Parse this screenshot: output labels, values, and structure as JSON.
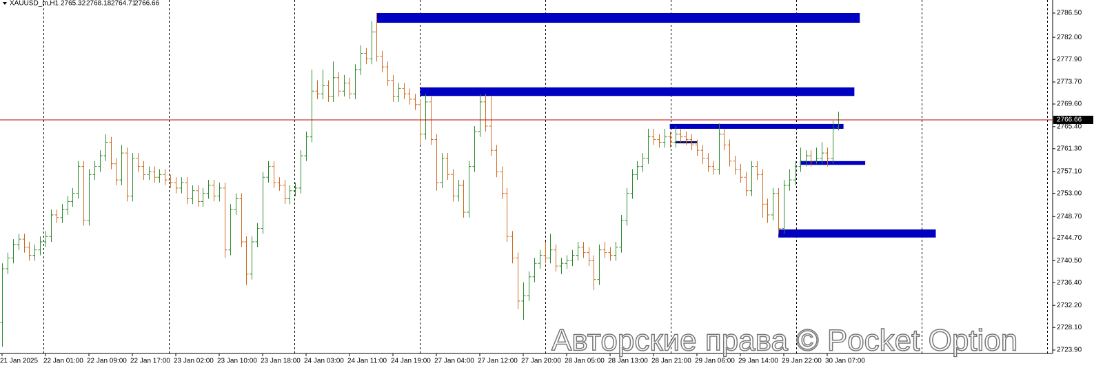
{
  "chart_data": {
    "type": "ohlc",
    "symbol": "XAUUSD_m,H1",
    "watermark": "Авторские права © Pocket Option",
    "up_color": "#2e8b2e",
    "down_color": "#cd6a1e",
    "price_line_color": "#c00000",
    "categories": [
      "21 Jan 2025",
      null,
      null,
      null,
      null,
      null,
      null,
      null,
      "22 Jan 01:00",
      null,
      null,
      null,
      null,
      null,
      null,
      null,
      "22 Jan 09:00",
      null,
      null,
      null,
      null,
      null,
      null,
      null,
      "22 Jan 17:00",
      null,
      null,
      null,
      null,
      null,
      null,
      null,
      "23 Jan 02:00",
      null,
      null,
      null,
      null,
      null,
      null,
      null,
      "23 Jan 10:00",
      null,
      null,
      null,
      null,
      null,
      null,
      null,
      "23 Jan 18:00",
      null,
      null,
      null,
      null,
      null,
      null,
      null,
      "24 Jan 03:00",
      null,
      null,
      null,
      null,
      null,
      null,
      null,
      "24 Jan 11:00",
      null,
      null,
      null,
      null,
      null,
      null,
      null,
      "24 Jan 19:00",
      null,
      null,
      null,
      null,
      null,
      null,
      null,
      "27 Jan 04:00",
      null,
      null,
      null,
      null,
      null,
      null,
      null,
      "27 Jan 12:00",
      null,
      null,
      null,
      null,
      null,
      null,
      null,
      "27 Jan 20:00",
      null,
      null,
      null,
      null,
      null,
      null,
      null,
      "28 Jan 05:00",
      null,
      null,
      null,
      null,
      null,
      null,
      null,
      "28 Jan 13:00",
      null,
      null,
      null,
      null,
      null,
      null,
      null,
      "28 Jan 21:00",
      null,
      null,
      null,
      null,
      null,
      null,
      null,
      "29 Jan 06:00",
      null,
      null,
      null,
      null,
      null,
      null,
      null,
      "29 Jan 14:00",
      null,
      null,
      null,
      null,
      null,
      null,
      null,
      "29 Jan 22:00",
      null,
      null,
      null,
      null,
      null,
      null,
      null,
      "30 Jan 07:00",
      null,
      null
    ],
    "open": [
      2729.0,
      2739.0,
      2741.0,
      2743.5,
      2744.5,
      2743.0,
      2741.5,
      2742.5,
      2744.0,
      2745.0,
      2749.0,
      2748.5,
      2750.0,
      2751.5,
      2753.0,
      2758.0,
      2748.0,
      2756.5,
      2758.0,
      2760.0,
      2762.5,
      2758.5,
      2755.5,
      2760.5,
      2752.5,
      2759.5,
      2758.0,
      2756.5,
      2757.0,
      2756.0,
      2756.5,
      2755.5,
      2755.0,
      2754.0,
      2755.0,
      2752.0,
      2753.5,
      2751.5,
      2753.0,
      2754.5,
      2752.5,
      2754.0,
      2742.5,
      2750.0,
      2752.0,
      2744.0,
      2738.0,
      2744.0,
      2746.5,
      2756.0,
      2758.0,
      2755.0,
      2754.5,
      2752.0,
      2753.5,
      2754.0,
      2760.0,
      2763.5,
      2772.0,
      2771.5,
      2773.0,
      2771.0,
      2774.5,
      2772.0,
      2773.5,
      2771.5,
      2776.0,
      2779.0,
      2778.0,
      2783.0,
      2778.5,
      2776.5,
      2774.0,
      2771.0,
      2772.5,
      2771.5,
      2770.5,
      2769.5,
      2764.0,
      2770.0,
      2763.0,
      2755.0,
      2759.5,
      2756.5,
      2752.5,
      2754.5,
      2749.5,
      2758.0,
      2764.5,
      2770.0,
      2765.5,
      2761.0,
      2757.0,
      2753.0,
      2745.0,
      2741.0,
      2733.0,
      2734.0,
      2737.5,
      2740.0,
      2741.5,
      2741.0,
      2742.5,
      2739.5,
      2740.0,
      2740.5,
      2741.5,
      2743.0,
      2742.0,
      2740.5,
      2737.0,
      2742.5,
      2742.0,
      2741.5,
      2743.0,
      2748.0,
      2753.0,
      2756.5,
      2758.0,
      2759.5,
      2763.5,
      2763.0,
      2762.5,
      2763.5,
      2762.5,
      2764.0,
      2763.5,
      2763.0,
      2762.0,
      2761.0,
      2759.5,
      2758.0,
      2757.5,
      2764.0,
      2762.0,
      2759.0,
      2757.5,
      2756.0,
      2753.5,
      2758.0,
      2756.5,
      2751.0,
      2749.0,
      2753.0,
      2746.5,
      2754.5,
      2755.5,
      2758.0,
      2759.0,
      2760.0,
      2759.0,
      2759.5,
      2760.5,
      2759.5,
      2765.32
    ],
    "high": [
      2740.0,
      2742.0,
      2744.5,
      2745.5,
      2745.5,
      2744.0,
      2743.5,
      2745.0,
      2746.0,
      2750.0,
      2750.0,
      2751.0,
      2752.5,
      2754.0,
      2759.0,
      2759.0,
      2757.5,
      2759.0,
      2761.0,
      2764.0,
      2763.5,
      2759.5,
      2762.0,
      2761.5,
      2760.5,
      2760.5,
      2759.0,
      2758.0,
      2758.0,
      2757.5,
      2757.5,
      2756.5,
      2756.0,
      2756.0,
      2756.0,
      2754.5,
      2754.5,
      2754.0,
      2755.5,
      2755.5,
      2755.0,
      2755.0,
      2751.0,
      2753.0,
      2753.0,
      2745.0,
      2745.0,
      2747.5,
      2757.0,
      2759.0,
      2759.0,
      2756.0,
      2755.5,
      2754.5,
      2755.0,
      2761.0,
      2764.5,
      2776.0,
      2774.0,
      2776.0,
      2774.0,
      2777.5,
      2775.5,
      2775.0,
      2774.5,
      2777.0,
      2780.5,
      2780.0,
      2785.0,
      2786.5,
      2779.5,
      2777.5,
      2775.0,
      2773.5,
      2773.5,
      2772.5,
      2771.5,
      2770.5,
      2771.5,
      2771.0,
      2764.0,
      2760.5,
      2760.5,
      2757.5,
      2755.5,
      2755.5,
      2759.0,
      2765.5,
      2771.5,
      2771.5,
      2771.0,
      2762.0,
      2758.0,
      2754.0,
      2746.0,
      2742.0,
      2736.5,
      2738.5,
      2741.0,
      2742.5,
      2744.0,
      2745.5,
      2743.5,
      2741.0,
      2741.5,
      2742.5,
      2744.0,
      2744.0,
      2743.0,
      2741.5,
      2743.5,
      2744.0,
      2743.0,
      2744.0,
      2749.0,
      2754.0,
      2757.5,
      2759.0,
      2760.5,
      2765.0,
      2765.0,
      2764.0,
      2765.0,
      2764.5,
      2765.5,
      2765.0,
      2764.5,
      2764.0,
      2763.0,
      2762.0,
      2760.5,
      2759.0,
      2766.0,
      2765.0,
      2763.0,
      2760.0,
      2758.5,
      2757.0,
      2759.0,
      2759.0,
      2757.5,
      2752.0,
      2754.0,
      2754.0,
      2755.5,
      2757.5,
      2759.0,
      2761.5,
      2761.0,
      2761.0,
      2761.5,
      2762.5,
      2761.5,
      2766.5,
      2768.18
    ],
    "low": [
      2724.5,
      2738.0,
      2740.0,
      2742.5,
      2742.0,
      2740.5,
      2740.5,
      2741.5,
      2743.0,
      2744.0,
      2747.5,
      2747.5,
      2749.0,
      2750.5,
      2752.0,
      2747.0,
      2747.0,
      2755.5,
      2757.0,
      2759.0,
      2757.5,
      2754.5,
      2754.5,
      2751.5,
      2751.5,
      2757.0,
      2755.5,
      2755.5,
      2755.0,
      2755.0,
      2754.5,
      2754.0,
      2753.0,
      2753.0,
      2751.0,
      2751.0,
      2750.5,
      2750.5,
      2752.0,
      2751.5,
      2751.5,
      2741.0,
      2741.5,
      2749.0,
      2743.0,
      2736.0,
      2737.0,
      2743.0,
      2745.5,
      2755.0,
      2754.0,
      2753.5,
      2751.0,
      2751.0,
      2752.5,
      2753.0,
      2759.0,
      2762.5,
      2770.5,
      2770.5,
      2770.0,
      2770.0,
      2771.0,
      2771.0,
      2770.5,
      2770.5,
      2775.0,
      2777.0,
      2777.0,
      2777.5,
      2775.5,
      2773.0,
      2770.0,
      2770.0,
      2770.5,
      2769.5,
      2768.5,
      2762.0,
      2763.0,
      2762.0,
      2753.5,
      2754.0,
      2755.5,
      2751.5,
      2751.5,
      2748.5,
      2748.5,
      2757.0,
      2763.5,
      2764.5,
      2760.0,
      2756.0,
      2752.0,
      2744.0,
      2740.0,
      2731.5,
      2729.5,
      2733.0,
      2736.5,
      2739.0,
      2740.0,
      2740.0,
      2738.5,
      2738.0,
      2739.0,
      2739.5,
      2740.5,
      2741.0,
      2739.5,
      2735.0,
      2736.0,
      2741.0,
      2740.5,
      2740.5,
      2742.0,
      2747.0,
      2752.0,
      2755.5,
      2757.0,
      2758.5,
      2762.0,
      2761.5,
      2761.5,
      2761.5,
      2761.5,
      2762.5,
      2762.0,
      2761.0,
      2760.0,
      2758.5,
      2757.0,
      2756.5,
      2756.5,
      2761.0,
      2758.0,
      2756.5,
      2755.0,
      2752.5,
      2752.5,
      2755.5,
      2748.5,
      2747.5,
      2748.0,
      2745.5,
      2745.5,
      2753.5,
      2754.5,
      2757.0,
      2758.0,
      2758.0,
      2758.5,
      2758.5,
      2758.0,
      2758.5,
      2764.71
    ],
    "close": [
      2739.0,
      2741.0,
      2743.5,
      2744.5,
      2743.0,
      2741.5,
      2742.5,
      2744.0,
      2745.0,
      2749.0,
      2748.5,
      2750.0,
      2751.5,
      2753.0,
      2758.0,
      2748.0,
      2756.5,
      2758.0,
      2760.0,
      2762.5,
      2758.5,
      2755.5,
      2760.5,
      2752.5,
      2759.5,
      2758.0,
      2756.5,
      2757.0,
      2756.0,
      2756.5,
      2755.5,
      2755.0,
      2754.0,
      2755.0,
      2752.0,
      2753.5,
      2751.5,
      2753.0,
      2754.5,
      2752.5,
      2754.0,
      2742.5,
      2750.0,
      2752.0,
      2744.0,
      2738.0,
      2744.0,
      2746.5,
      2756.0,
      2758.0,
      2755.0,
      2754.5,
      2752.0,
      2753.5,
      2754.0,
      2760.0,
      2763.5,
      2772.0,
      2771.5,
      2773.0,
      2771.0,
      2774.5,
      2772.0,
      2773.5,
      2771.5,
      2776.0,
      2779.0,
      2778.0,
      2783.0,
      2778.5,
      2776.5,
      2774.0,
      2771.0,
      2772.5,
      2771.5,
      2770.5,
      2769.5,
      2764.0,
      2770.0,
      2763.0,
      2755.0,
      2759.5,
      2756.5,
      2752.5,
      2754.5,
      2749.5,
      2758.0,
      2764.5,
      2770.0,
      2765.5,
      2761.0,
      2757.0,
      2753.0,
      2745.0,
      2741.0,
      2733.0,
      2734.0,
      2737.5,
      2740.0,
      2741.5,
      2741.0,
      2742.5,
      2739.5,
      2740.0,
      2740.5,
      2741.5,
      2743.0,
      2742.0,
      2740.5,
      2737.0,
      2742.5,
      2742.0,
      2741.5,
      2743.0,
      2748.0,
      2753.0,
      2756.5,
      2758.0,
      2759.5,
      2763.5,
      2763.0,
      2762.5,
      2763.5,
      2762.5,
      2764.0,
      2763.5,
      2763.0,
      2762.0,
      2761.0,
      2759.5,
      2758.0,
      2757.5,
      2764.0,
      2762.0,
      2759.0,
      2757.5,
      2756.0,
      2753.5,
      2758.0,
      2756.5,
      2751.0,
      2749.0,
      2753.0,
      2746.5,
      2754.5,
      2755.5,
      2758.0,
      2759.0,
      2760.0,
      2759.0,
      2759.5,
      2760.5,
      2759.5,
      2765.0,
      2766.66
    ],
    "zones": [
      {
        "start": 69,
        "end": 158,
        "top": 2786.5,
        "bottom": 2784.7,
        "color": "#0000c0"
      },
      {
        "start": 77,
        "end": 157,
        "top": 2772.7,
        "bottom": 2771.1,
        "color": "#0000c0"
      },
      {
        "start": 123,
        "end": 155,
        "top": 2765.9,
        "bottom": 2765.0,
        "color": "#0000c0"
      },
      {
        "start": 124,
        "end": 128,
        "top": 2762.7,
        "bottom": 2762.3,
        "color": "#101060"
      },
      {
        "start": 147,
        "end": 159,
        "top": 2759.0,
        "bottom": 2758.3,
        "color": "#0000c0"
      },
      {
        "start": 143,
        "end": 172,
        "top": 2746.3,
        "bottom": 2744.8,
        "color": "#0000c0"
      }
    ],
    "ylim": [
      2723.26,
      2788.93
    ],
    "yticks": [
      {
        "value": 2786.5,
        "label": "2786.50"
      },
      {
        "value": 2782,
        "label": "2782.00"
      },
      {
        "value": 2777.9,
        "label": "2777.90"
      },
      {
        "value": 2773.7,
        "label": "2773.70"
      },
      {
        "value": 2769.6,
        "label": "2769.60"
      },
      {
        "value": 2765.4,
        "label": "2765.40"
      },
      {
        "value": 2761.3,
        "label": "2761.30"
      },
      {
        "value": 2757.1,
        "label": "2757.10"
      },
      {
        "value": 2753,
        "label": "2753.00"
      },
      {
        "value": 2748.7,
        "label": "2748.70"
      },
      {
        "value": 2744.7,
        "label": "2744.70"
      },
      {
        "value": 2740.5,
        "label": "2740.50"
      },
      {
        "value": 2736.4,
        "label": "2736.40"
      },
      {
        "value": 2732.2,
        "label": "2732.20"
      },
      {
        "value": 2728.1,
        "label": "2728.10"
      },
      {
        "value": 2723.9,
        "label": "2723.90"
      }
    ]
  }
}
